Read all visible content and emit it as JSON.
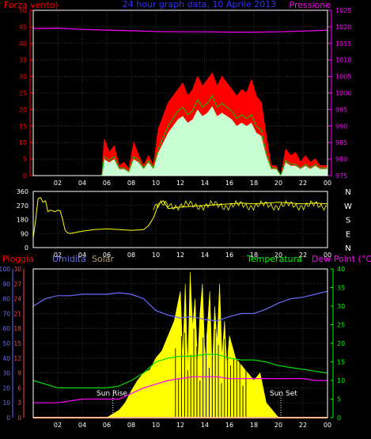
{
  "top_panel": {
    "title": "24 hour graph data, 10 Aprile 2013",
    "left_label": "Forza vento)",
    "right_label": "Pressione",
    "wind_ticks": [
      "0",
      "5",
      "10",
      "15",
      "20",
      "25",
      "30",
      "35",
      "40",
      "45",
      "50"
    ],
    "pressure_ticks": [
      "975",
      "980",
      "985",
      "990",
      "995",
      "1000",
      "1005",
      "1010",
      "1015",
      "1020",
      "1025"
    ],
    "x_ticks": [
      "02",
      "04",
      "06",
      "08",
      "10",
      "12",
      "14",
      "16",
      "18",
      "20",
      "22",
      "00"
    ]
  },
  "mid_panel": {
    "dir_ticks": [
      "0",
      "90",
      "180",
      "270",
      "360"
    ],
    "compass": [
      "N",
      "W",
      "S",
      "E",
      "N"
    ],
    "x_ticks": [
      "02",
      "04",
      "06",
      "08",
      "10",
      "12",
      "14",
      "16",
      "18",
      "20",
      "22",
      "00"
    ]
  },
  "bottom_panel": {
    "rain_label": "Pioggia",
    "humidity_label": "Umidita",
    "solar_label": "Solar",
    "temp_label": "Temperatura",
    "dew_label": "Dew Point (°C)",
    "sun_rise": "Sun Rise",
    "sun_set": "Sun Set",
    "ticks_a": [
      "0",
      "10",
      "20",
      "30",
      "40",
      "50",
      "60",
      "70",
      "80",
      "90",
      "100"
    ],
    "ticks_b": [
      "0",
      "3",
      "6",
      "9",
      "12",
      "15",
      "18",
      "21",
      "24",
      "27",
      "30"
    ],
    "ticks_right": [
      "0",
      "5",
      "10",
      "15",
      "20",
      "25",
      "30",
      "35",
      "40"
    ],
    "x_ticks": [
      "02",
      "04",
      "06",
      "08",
      "10",
      "12",
      "14",
      "16",
      "18",
      "20",
      "22",
      "00"
    ]
  },
  "colors": {
    "gust": "#ff0000",
    "avg_wind": "#00cc00",
    "wind_fill": "#c8ffd2",
    "pressure": "#ff00ff",
    "direction": "#ffff00",
    "humidity": "#6a6aff",
    "temperature": "#00dd00",
    "dew": "#ff00ff",
    "solar": "#ffff00",
    "rain": "#ff6a00",
    "grid": "#555555",
    "axis_green": "#00ff00"
  },
  "chart_data": [
    {
      "type": "line",
      "title": "24 hour graph data, 10 Aprile 2013",
      "x_unit": "hour",
      "x_range": [
        0,
        24
      ],
      "ylabel": "Forza vento)",
      "y2label": "Pressione",
      "ylim": [
        0,
        50
      ],
      "y2lim": [
        975,
        1025
      ],
      "series": [
        {
          "name": "Pressione",
          "axis": "right",
          "x": [
            0,
            2,
            4,
            6,
            8,
            10,
            12,
            14,
            16,
            18,
            20,
            22,
            24
          ],
          "values": [
            1019.5,
            1019.6,
            1019.2,
            1019.0,
            1018.8,
            1018.6,
            1018.5,
            1018.5,
            1018.4,
            1018.4,
            1018.5,
            1018.7,
            1019.0
          ]
        }
      ],
      "unlabeled_series": [
        {
          "axis": "left",
          "x": [
            0,
            5.6,
            5.8,
            6.2,
            6.6,
            7.0,
            7.4,
            7.8,
            8.2,
            8.6,
            9.0,
            9.4,
            9.8,
            10.2,
            10.6,
            11.0,
            11.4,
            11.8,
            12.2,
            12.6,
            13.0,
            13.4,
            13.8,
            14.2,
            14.6,
            15.0,
            15.4,
            15.8,
            16.2,
            16.6,
            17.0,
            17.4,
            17.8,
            18.2,
            18.6,
            19.0,
            19.4,
            19.8,
            20.2,
            20.6,
            21.0,
            21.4,
            21.8,
            22.2,
            22.6,
            23.0,
            23.4,
            24
          ],
          "values": [
            0,
            0,
            11,
            7,
            9,
            3,
            4,
            2,
            10,
            6,
            3,
            6,
            3,
            14,
            18,
            22,
            24,
            26,
            28,
            24,
            26,
            30,
            27,
            29,
            31,
            27,
            30,
            28,
            26,
            24,
            26,
            25,
            29,
            24,
            22,
            12,
            3,
            3,
            0,
            8,
            6,
            7,
            4,
            6,
            4,
            5,
            3,
            3
          ]
        },
        {
          "axis": "left",
          "x": [
            0,
            5.6,
            5.8,
            6.2,
            6.6,
            7.0,
            7.4,
            7.8,
            8.2,
            8.6,
            9.0,
            9.4,
            9.8,
            10.2,
            10.6,
            11.0,
            11.4,
            11.8,
            12.2,
            12.6,
            13.0,
            13.4,
            13.8,
            14.2,
            14.6,
            15.0,
            15.4,
            15.8,
            16.2,
            16.6,
            17.0,
            17.4,
            17.8,
            18.2,
            18.6,
            19.0,
            19.4,
            19.8,
            20.2,
            20.6,
            21.0,
            21.4,
            21.8,
            22.2,
            22.6,
            23.0,
            23.4,
            24
          ],
          "values": [
            0,
            0,
            5,
            4,
            5,
            2,
            2,
            1,
            5,
            4,
            2,
            4,
            2,
            7,
            10,
            13,
            15,
            17,
            18,
            16,
            17,
            20,
            18,
            19,
            21,
            18,
            19,
            18,
            17,
            15,
            16,
            15,
            16,
            13,
            12,
            6,
            2,
            2,
            0,
            4,
            3,
            3,
            2,
            3,
            2,
            3,
            2,
            2
          ]
        }
      ]
    },
    {
      "type": "line",
      "x_unit": "hour",
      "x_range": [
        0,
        24
      ],
      "ylim": [
        0,
        360
      ],
      "y_ticks": [
        0,
        90,
        180,
        270,
        360
      ],
      "unlabeled_series": [
        {
          "x": [
            0,
            0.2,
            0.4,
            0.6,
            0.8,
            1.0,
            1.2,
            1.4,
            1.6,
            1.8,
            2.0,
            2.2,
            2.4,
            2.6,
            2.8,
            3.0,
            4,
            5,
            6,
            7,
            8,
            9,
            9.4,
            9.8,
            10.0,
            10.2,
            10.6,
            11,
            12,
            13,
            14,
            15,
            16,
            17,
            18,
            19,
            20,
            21,
            22,
            23,
            24
          ],
          "values": [
            60,
            180,
            315,
            320,
            290,
            300,
            230,
            240,
            235,
            230,
            240,
            235,
            180,
            110,
            95,
            90,
            105,
            115,
            120,
            115,
            110,
            115,
            140,
            190,
            230,
            280,
            300,
            250,
            260,
            265,
            270,
            275,
            280,
            285,
            280,
            285,
            290,
            285,
            280,
            285,
            280
          ]
        }
      ]
    },
    {
      "type": "line",
      "x_unit": "hour",
      "x_range": [
        0,
        24
      ],
      "ylabel": "Umidita",
      "y2label": "Temperatura / Dew Point (°C)",
      "ylim": [
        0,
        100
      ],
      "y2lim": [
        0,
        40
      ],
      "annotations": [
        "Sun Rise",
        "Sun Set"
      ],
      "series": [
        {
          "name": "Umidita",
          "axis": "left",
          "x": [
            0,
            1,
            2,
            3,
            4,
            5,
            6,
            7,
            8,
            9,
            10,
            11,
            12,
            13,
            14,
            15,
            16,
            17,
            18,
            19,
            20,
            21,
            22,
            23,
            24
          ],
          "values": [
            75,
            80,
            82,
            82,
            83,
            83,
            83,
            84,
            83,
            80,
            72,
            69,
            67,
            68,
            66,
            65,
            68,
            70,
            70,
            73,
            77,
            80,
            81,
            83,
            85
          ]
        },
        {
          "name": "Temperatura",
          "axis": "right",
          "x": [
            0,
            1,
            2,
            3,
            4,
            5,
            6,
            7,
            8,
            9,
            10,
            11,
            12,
            13,
            14,
            15,
            16,
            17,
            18,
            19,
            20,
            21,
            22,
            23,
            24
          ],
          "values": [
            10,
            9,
            8,
            8,
            8,
            8,
            8,
            8.5,
            10,
            12,
            15,
            16,
            16.5,
            16.5,
            17,
            17,
            16,
            15.5,
            15.5,
            15,
            14,
            13.5,
            13,
            12.5,
            12
          ]
        },
        {
          "name": "Dew Point (°C)",
          "axis": "right",
          "x": [
            0,
            1,
            2,
            3,
            4,
            5,
            6,
            7,
            8,
            9,
            10,
            11,
            12,
            13,
            14,
            15,
            16,
            17,
            18,
            19,
            20,
            21,
            22,
            23,
            24
          ],
          "values": [
            4,
            4,
            4,
            4.5,
            5,
            5,
            5,
            5,
            6.5,
            8,
            9,
            10,
            10.5,
            11,
            11,
            11,
            10.5,
            10.5,
            10.5,
            10.5,
            10.5,
            10.5,
            10.5,
            10,
            10
          ]
        },
        {
          "name": "Solar",
          "axis": "left",
          "x": [
            0,
            6,
            7,
            7.5,
            8,
            8.5,
            9,
            9.5,
            10,
            10.5,
            11,
            11.5,
            12,
            12.2,
            12.4,
            12.6,
            12.8,
            13,
            13.2,
            13.4,
            13.6,
            13.8,
            14,
            14.2,
            14.4,
            14.6,
            14.8,
            15,
            15.2,
            15.4,
            15.6,
            15.8,
            16,
            16.5,
            17,
            17.5,
            18,
            18.5,
            19,
            19.5,
            20,
            24
          ],
          "values": [
            0,
            0,
            5,
            10,
            18,
            25,
            30,
            32,
            40,
            45,
            55,
            65,
            85,
            40,
            90,
            30,
            98,
            60,
            80,
            35,
            70,
            90,
            40,
            60,
            85,
            30,
            75,
            50,
            90,
            40,
            65,
            35,
            55,
            40,
            35,
            30,
            25,
            30,
            10,
            5,
            0,
            0
          ]
        },
        {
          "name": "Pioggia",
          "axis": "left",
          "x": [
            0,
            24
          ],
          "values": [
            0,
            0
          ]
        }
      ]
    }
  ]
}
